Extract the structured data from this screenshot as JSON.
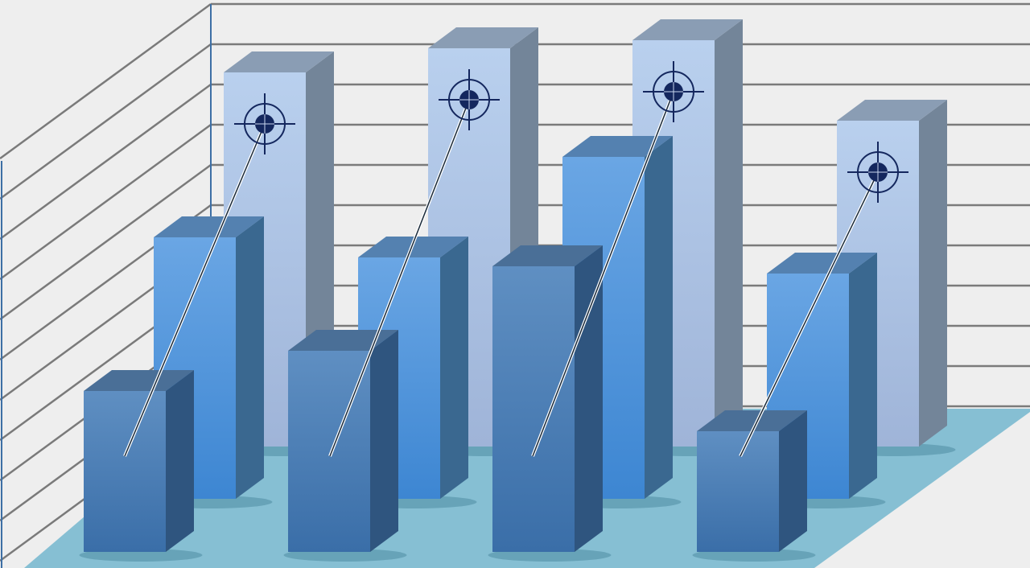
{
  "chart_data": {
    "type": "bar",
    "style": "3d-clustered-rows",
    "title": "",
    "xlabel": "",
    "ylabel": "",
    "grid": true,
    "legend": "none",
    "categories": [
      "",
      "",
      "",
      ""
    ],
    "series": [
      {
        "row": "back",
        "color": "#b3cbea",
        "values": [
          9.3,
          9.9,
          10.1,
          8.1
        ],
        "markers": "crosshair-target"
      },
      {
        "row": "middle",
        "color": "#5b9be0",
        "values": [
          6.5,
          6.0,
          8.5,
          5.6
        ]
      },
      {
        "row": "front",
        "color": "#3f74ad",
        "values": [
          4.0,
          5.0,
          7.1,
          3.0
        ]
      }
    ],
    "colors": {
      "wall": "#eeeeee",
      "gridline": "#7a7a7a",
      "floor": "#86bfd3",
      "axis": "#3d6fa5",
      "target": "#14275e"
    }
  }
}
